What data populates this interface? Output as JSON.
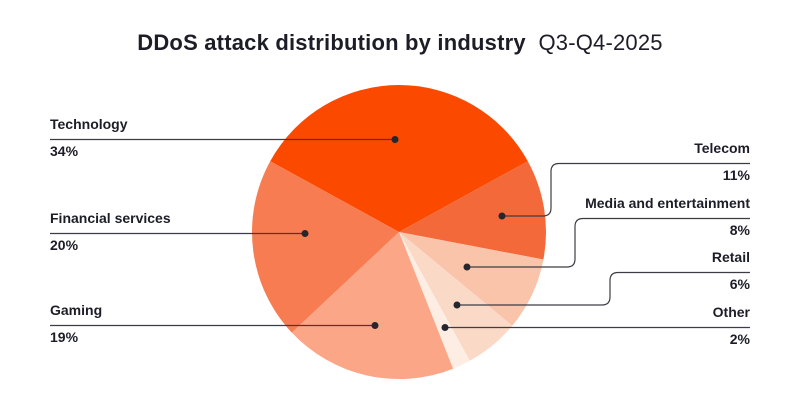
{
  "title": {
    "bold": "DDoS attack distribution by industry",
    "period": "Q3-Q4-2025"
  },
  "colors": {
    "background": "#ffffff",
    "text": "#1d1d28",
    "leader": "#3d3d44",
    "dot": "#26262e"
  },
  "chart_data": {
    "type": "pie",
    "title": "DDoS attack distribution by industry Q3-Q4-2025",
    "units": "%",
    "direction": "clockwise",
    "start_angle_deg": -61.2,
    "legend_position": "callout-labels",
    "items": [
      {
        "label": "Technology",
        "value": 34,
        "pct": "34%",
        "color": "#fb4a00",
        "side": "left"
      },
      {
        "label": "Telecom",
        "value": 11,
        "pct": "11%",
        "color": "#f3693a",
        "side": "right"
      },
      {
        "label": "Media and entertainment",
        "value": 8,
        "pct": "8%",
        "color": "#f9c4a9",
        "side": "right"
      },
      {
        "label": "Retail",
        "value": 6,
        "pct": "6%",
        "color": "#fbd9c7",
        "side": "right"
      },
      {
        "label": "Other",
        "value": 2,
        "pct": "2%",
        "color": "#fdede3",
        "side": "right"
      },
      {
        "label": "Gaming",
        "value": 19,
        "pct": "19%",
        "color": "#fba687",
        "side": "left"
      },
      {
        "label": "Financial services",
        "value": 20,
        "pct": "20%",
        "color": "#f87c52",
        "side": "left"
      }
    ]
  }
}
